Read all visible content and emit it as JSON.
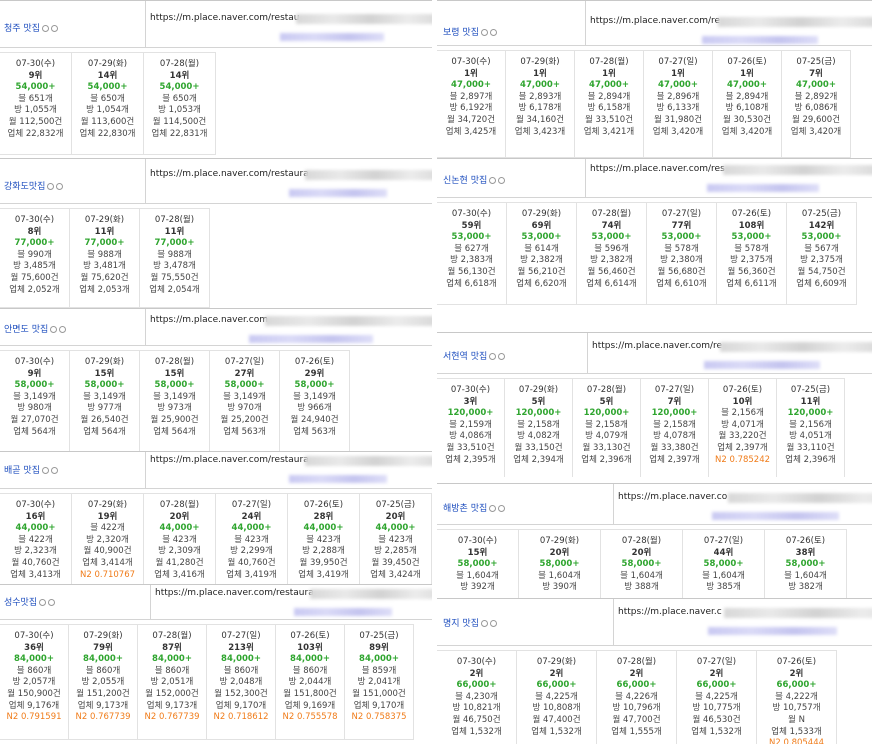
{
  "panels": [
    {
      "keyword": "청주 맛집",
      "url": "https://m.place.naver.com/restau",
      "cols": [
        {
          "date": "07-30(수)",
          "rank": "9위",
          "searches": "54,000+",
          "blog": "블 651개",
          "visit": "방 1,055개",
          "monthly": "월 112,500건",
          "biz": "업체 22,832개"
        },
        {
          "date": "07-29(화)",
          "rank": "14위",
          "searches": "54,000+",
          "blog": "블 650개",
          "visit": "방 1,054개",
          "monthly": "월 113,600건",
          "biz": "업체 22,830개"
        },
        {
          "date": "07-28(월)",
          "rank": "14위",
          "searches": "54,000+",
          "blog": "블 650개",
          "visit": "방 1,053개",
          "monthly": "월 114,500건",
          "biz": "업체 22,831개"
        }
      ]
    },
    {
      "keyword": "강화도맛집",
      "url": "https://m.place.naver.com/restaura",
      "cols": [
        {
          "date": "07-30(수)",
          "rank": "8위",
          "searches": "77,000+",
          "blog": "블 990개",
          "visit": "방 3,485개",
          "monthly": "월 75,600건",
          "biz": "업체 2,052개"
        },
        {
          "date": "07-29(화)",
          "rank": "11위",
          "searches": "77,000+",
          "blog": "블 988개",
          "visit": "방 3,481개",
          "monthly": "월 75,620건",
          "biz": "업체 2,053개"
        },
        {
          "date": "07-28(월)",
          "rank": "11위",
          "searches": "77,000+",
          "blog": "블 988개",
          "visit": "방 3,478개",
          "monthly": "월 75,550건",
          "biz": "업체 2,054개"
        }
      ]
    },
    {
      "keyword": "안면도 맛집",
      "url": "https://m.place.naver.com",
      "cols": [
        {
          "date": "07-30(수)",
          "rank": "9위",
          "searches": "58,000+",
          "blog": "블 3,149개",
          "visit": "방 980개",
          "monthly": "월 27,070건",
          "biz": "업체 564개"
        },
        {
          "date": "07-29(화)",
          "rank": "15위",
          "searches": "58,000+",
          "blog": "블 3,149개",
          "visit": "방 977개",
          "monthly": "월 26,540건",
          "biz": "업체 564개"
        },
        {
          "date": "07-28(월)",
          "rank": "15위",
          "searches": "58,000+",
          "blog": "블 3,149개",
          "visit": "방 973개",
          "monthly": "월 25,900건",
          "biz": "업체 564개"
        },
        {
          "date": "07-27(일)",
          "rank": "27위",
          "searches": "58,000+",
          "blog": "블 3,149개",
          "visit": "방 970개",
          "monthly": "월 25,200건",
          "biz": "업체 563개"
        },
        {
          "date": "07-26(토)",
          "rank": "29위",
          "searches": "58,000+",
          "blog": "블 3,149개",
          "visit": "방 966개",
          "monthly": "월 24,940건",
          "biz": "업체 563개"
        }
      ]
    },
    {
      "keyword": "배곧 맛집",
      "url": "https://m.place.naver.com/restaura",
      "cols": [
        {
          "date": "07-30(수)",
          "rank": "16위",
          "searches": "44,000+",
          "blog": "블 422개",
          "visit": "방 2,323개",
          "monthly": "월 40,760건",
          "biz": "업체 3,413개"
        },
        {
          "date": "07-29(화)",
          "rank": "19위",
          "searches": "",
          "blog": "블 422개",
          "visit": "방 2,320개",
          "monthly": "월 40,900건",
          "biz": "업체 3,414개",
          "n2": "N2 0.710767"
        },
        {
          "date": "07-28(월)",
          "rank": "20위",
          "searches": "44,000+",
          "blog": "블 423개",
          "visit": "방 2,309개",
          "monthly": "월 41,280건",
          "biz": "업체 3,416개"
        },
        {
          "date": "07-27(일)",
          "rank": "24위",
          "searches": "44,000+",
          "blog": "블 423개",
          "visit": "방 2,299개",
          "monthly": "월 40,760건",
          "biz": "업체 3,419개"
        },
        {
          "date": "07-26(토)",
          "rank": "28위",
          "searches": "44,000+",
          "blog": "블 423개",
          "visit": "방 2,288개",
          "monthly": "월 39,950건",
          "biz": "업체 3,419개"
        },
        {
          "date": "07-25(금)",
          "rank": "20위",
          "searches": "44,000+",
          "blog": "블 423개",
          "visit": "방 2,285개",
          "monthly": "월 39,450건",
          "biz": "업체 3,424개"
        }
      ]
    },
    {
      "keyword": "성수맛집",
      "url": "https://m.place.naver.com/restaura",
      "cols": [
        {
          "date": "07-30(수)",
          "rank": "36위",
          "searches": "84,000+",
          "blog": "블 860개",
          "visit": "방 2,057개",
          "monthly": "월 150,900건",
          "biz": "업체 9,176개",
          "n2": "N2 0.791591"
        },
        {
          "date": "07-29(화)",
          "rank": "79위",
          "searches": "84,000+",
          "blog": "블 860개",
          "visit": "방 2,055개",
          "monthly": "월 151,200건",
          "biz": "업체 9,173개",
          "n2": "N2 0.767739"
        },
        {
          "date": "07-28(월)",
          "rank": "87위",
          "searches": "84,000+",
          "blog": "블 860개",
          "visit": "방 2,051개",
          "monthly": "월 152,000건",
          "biz": "업체 9,173개",
          "n2": "N2 0.767739"
        },
        {
          "date": "07-27(일)",
          "rank": "213위",
          "searches": "84,000+",
          "blog": "블 860개",
          "visit": "방 2,048개",
          "monthly": "월 152,300건",
          "biz": "업체 9,170개",
          "n2": "N2 0.718612"
        },
        {
          "date": "07-26(토)",
          "rank": "103위",
          "searches": "84,000+",
          "blog": "블 860개",
          "visit": "방 2,044개",
          "monthly": "월 151,800건",
          "biz": "업체 9,169개",
          "n2": "N2 0.755578"
        },
        {
          "date": "07-25(금)",
          "rank": "89위",
          "searches": "84,000+",
          "blog": "블 859개",
          "visit": "방 2,041개",
          "monthly": "월 151,000건",
          "biz": "업체 9,170개",
          "n2": "N2 0.758375"
        }
      ]
    },
    {
      "keyword": "보령 맛집",
      "url": "https://m.place.naver.com/re",
      "cols": [
        {
          "date": "07-30(수)",
          "rank": "1위",
          "searches": "47,000+",
          "blog": "블 2,897개",
          "visit": "방 6,192개",
          "monthly": "월 34,720건",
          "biz": "업체 3,425개"
        },
        {
          "date": "07-29(화)",
          "rank": "1위",
          "searches": "47,000+",
          "blog": "블 2,893개",
          "visit": "방 6,178개",
          "monthly": "월 34,160건",
          "biz": "업체 3,423개"
        },
        {
          "date": "07-28(월)",
          "rank": "1위",
          "searches": "47,000+",
          "blog": "블 2,894개",
          "visit": "방 6,158개",
          "monthly": "월 33,510건",
          "biz": "업체 3,421개"
        },
        {
          "date": "07-27(일)",
          "rank": "1위",
          "searches": "47,000+",
          "blog": "블 2,896개",
          "visit": "방 6,133개",
          "monthly": "월 31,980건",
          "biz": "업체 3,420개"
        },
        {
          "date": "07-26(토)",
          "rank": "1위",
          "searches": "47,000+",
          "blog": "블 2,894개",
          "visit": "방 6,108개",
          "monthly": "월 30,530건",
          "biz": "업체 3,420개"
        },
        {
          "date": "07-25(금)",
          "rank": "7위",
          "searches": "47,000+",
          "blog": "블 2,892개",
          "visit": "방 6,086개",
          "monthly": "월 29,600건",
          "biz": "업체 3,420개"
        }
      ]
    },
    {
      "keyword": "신논현 맛집",
      "url": "https://m.place.naver.com/res",
      "cols": [
        {
          "date": "07-30(수)",
          "rank": "59위",
          "searches": "53,000+",
          "blog": "블 627개",
          "visit": "방 2,383개",
          "monthly": "월 56,130건",
          "biz": "업체 6,618개"
        },
        {
          "date": "07-29(화)",
          "rank": "69위",
          "searches": "53,000+",
          "blog": "블 614개",
          "visit": "방 2,382개",
          "monthly": "월 56,210건",
          "biz": "업체 6,620개"
        },
        {
          "date": "07-28(월)",
          "rank": "74위",
          "searches": "53,000+",
          "blog": "블 596개",
          "visit": "방 2,382개",
          "monthly": "월 56,460건",
          "biz": "업체 6,614개"
        },
        {
          "date": "07-27(일)",
          "rank": "77위",
          "searches": "53,000+",
          "blog": "블 578개",
          "visit": "방 2,380개",
          "monthly": "월 56,680건",
          "biz": "업체 6,610개"
        },
        {
          "date": "07-26(토)",
          "rank": "108위",
          "searches": "53,000+",
          "blog": "블 578개",
          "visit": "방 2,375개",
          "monthly": "월 56,360건",
          "biz": "업체 6,611개"
        },
        {
          "date": "07-25(금)",
          "rank": "142위",
          "searches": "53,000+",
          "blog": "블 567개",
          "visit": "방 2,375개",
          "monthly": "월 54,750건",
          "biz": "업체 6,609개"
        }
      ]
    },
    {
      "keyword": "서현역 맛집",
      "url": "https://m.place.naver.com/re",
      "cols": [
        {
          "date": "07-30(수)",
          "rank": "3위",
          "searches": "120,000+",
          "blog": "블 2,159개",
          "visit": "방 4,086개",
          "monthly": "월 33,510건",
          "biz": "업체 2,395개"
        },
        {
          "date": "07-29(화)",
          "rank": "5위",
          "searches": "120,000+",
          "blog": "블 2,158개",
          "visit": "방 4,082개",
          "monthly": "월 33,150건",
          "biz": "업체 2,394개"
        },
        {
          "date": "07-28(월)",
          "rank": "5위",
          "searches": "120,000+",
          "blog": "블 2,158개",
          "visit": "방 4,079개",
          "monthly": "월 33,130건",
          "biz": "업체 2,396개"
        },
        {
          "date": "07-27(일)",
          "rank": "7위",
          "searches": "120,000+",
          "blog": "블 2,158개",
          "visit": "방 4,078개",
          "monthly": "월 33,380건",
          "biz": "업체 2,397개"
        },
        {
          "date": "07-26(토)",
          "rank": "10위",
          "searches": "",
          "blog": "블 2,156개",
          "visit": "방 4,071개",
          "monthly": "월 33,220건",
          "biz": "업체 2,397개",
          "n2": "N2 0.785242"
        },
        {
          "date": "07-25(금)",
          "rank": "11위",
          "searches": "120,000+",
          "blog": "블 2,156개",
          "visit": "방 4,051개",
          "monthly": "월 33,110건",
          "biz": "업체 2,396개"
        }
      ]
    },
    {
      "keyword": "해방촌 맛집",
      "url": "https://m.place.naver.co",
      "cols": [
        {
          "date": "07-30(수)",
          "rank": "15위",
          "searches": "58,000+",
          "blog": "블 1,604개",
          "visit": "방 392개"
        },
        {
          "date": "07-29(화)",
          "rank": "20위",
          "searches": "58,000+",
          "blog": "블 1,604개",
          "visit": "방 390개"
        },
        {
          "date": "07-28(월)",
          "rank": "20위",
          "searches": "58,000+",
          "blog": "블 1,604개",
          "visit": "방 388개"
        },
        {
          "date": "07-27(일)",
          "rank": "44위",
          "searches": "58,000+",
          "blog": "블 1,604개",
          "visit": "방 385개"
        },
        {
          "date": "07-26(토)",
          "rank": "38위",
          "searches": "58,000+",
          "blog": "블 1,604개",
          "visit": "방 382개"
        }
      ]
    },
    {
      "keyword": "명지 맛집",
      "url": "https://m.place.naver.c",
      "cols": [
        {
          "date": "07-30(수)",
          "rank": "2위",
          "searches": "66,000+",
          "blog": "블 4,230개",
          "visit": "방 10,821개",
          "monthly": "월 46,750건",
          "biz": "업체 1,532개"
        },
        {
          "date": "07-29(화)",
          "rank": "2위",
          "searches": "66,000+",
          "blog": "블 4,225개",
          "visit": "방 10,808개",
          "monthly": "월 47,400건",
          "biz": "업체 1,532개"
        },
        {
          "date": "07-28(월)",
          "rank": "2위",
          "searches": "66,000+",
          "blog": "블 4,226개",
          "visit": "방 10,796개",
          "monthly": "월 47,700건",
          "biz": "업체 1,555개"
        },
        {
          "date": "07-27(일)",
          "rank": "2위",
          "searches": "66,000+",
          "blog": "블 4,225개",
          "visit": "방 10,775개",
          "monthly": "월 46,530건",
          "biz": "업체 1,532개"
        },
        {
          "date": "07-26(토)",
          "rank": "2위",
          "searches": "66,000+",
          "blog": "블 4,222개",
          "visit": "방 10,757개",
          "monthly": "월 N",
          "biz": "업체 1,533개",
          "n2": "N2 0.805444"
        }
      ]
    }
  ]
}
